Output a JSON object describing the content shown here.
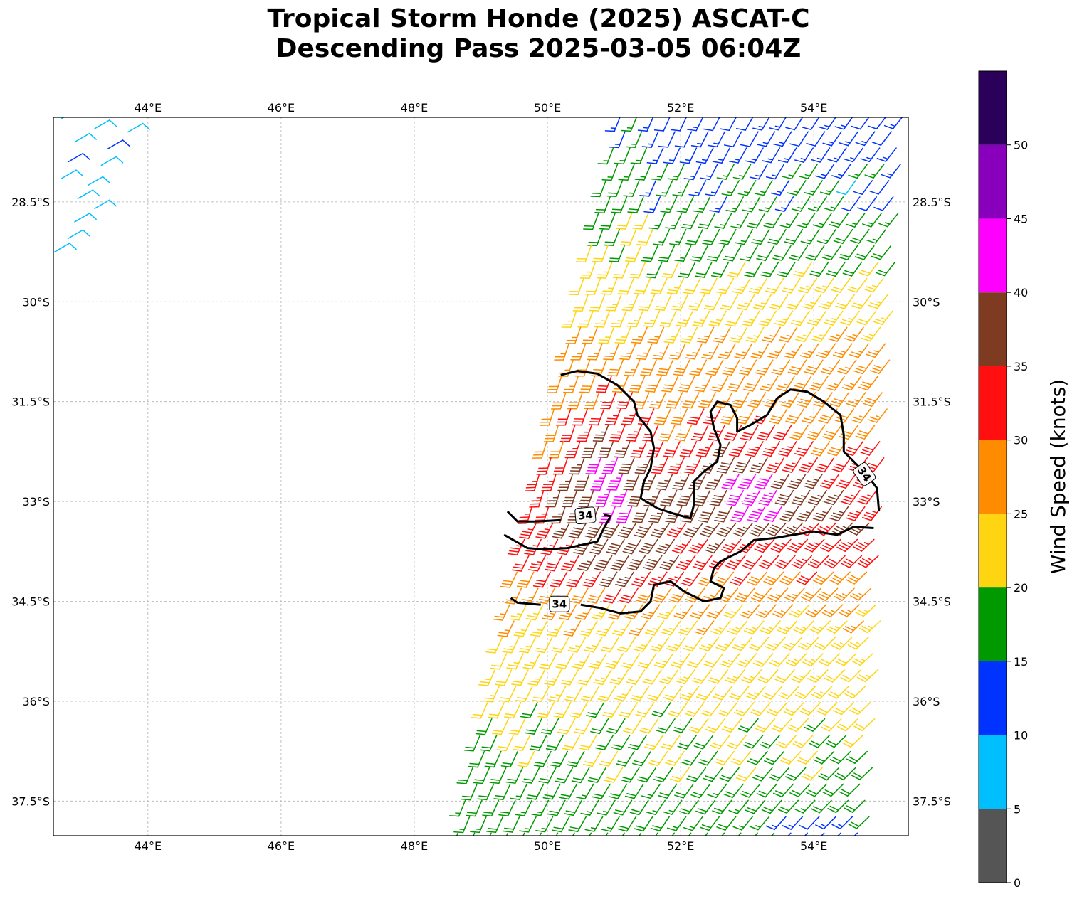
{
  "title": {
    "line1": "Tropical Storm Honde (2025) ASCAT-C",
    "line2": "Descending Pass 2025-03-05 06:04Z"
  },
  "map": {
    "projection": "lon-lat",
    "lon_range": [
      42.58,
      55.42
    ],
    "lat_range": [
      -38.02,
      -27.23
    ],
    "grid": true,
    "lon_ticks": [
      {
        "value": 44,
        "label": "44°E"
      },
      {
        "value": 46,
        "label": "46°E"
      },
      {
        "value": 48,
        "label": "48°E"
      },
      {
        "value": 50,
        "label": "50°E"
      },
      {
        "value": 52,
        "label": "52°E"
      },
      {
        "value": 54,
        "label": "54°E"
      }
    ],
    "lat_ticks": [
      {
        "value": -28.5,
        "label": "28.5°S"
      },
      {
        "value": -30,
        "label": "30°S"
      },
      {
        "value": -31.5,
        "label": "31.5°S"
      },
      {
        "value": -33,
        "label": "33°S"
      },
      {
        "value": -34.5,
        "label": "34.5°S"
      },
      {
        "value": -36,
        "label": "36°S"
      },
      {
        "value": -37.5,
        "label": "37.5°S"
      }
    ],
    "contour": {
      "level_label": "34",
      "color": "#000000",
      "lines": [
        [
          [
            50.2,
            -31.1
          ],
          [
            50.45,
            -31.04
          ],
          [
            50.75,
            -31.08
          ],
          [
            51.05,
            -31.25
          ],
          [
            51.3,
            -31.5
          ],
          [
            51.35,
            -31.7
          ],
          [
            51.55,
            -31.95
          ],
          [
            51.6,
            -32.2
          ],
          [
            51.55,
            -32.5
          ],
          [
            51.45,
            -32.7
          ],
          [
            51.4,
            -32.95
          ],
          [
            51.65,
            -33.1
          ],
          [
            51.95,
            -33.2
          ],
          [
            52.15,
            -33.25
          ],
          [
            52.2,
            -33.05
          ],
          [
            52.2,
            -32.7
          ],
          [
            52.35,
            -32.55
          ],
          [
            52.55,
            -32.4
          ],
          [
            52.6,
            -32.15
          ],
          [
            52.5,
            -31.9
          ],
          [
            52.45,
            -31.65
          ],
          [
            52.55,
            -31.5
          ],
          [
            52.75,
            -31.55
          ],
          [
            52.85,
            -31.75
          ],
          [
            52.85,
            -31.95
          ],
          [
            53.05,
            -31.85
          ],
          [
            53.3,
            -31.7
          ],
          [
            53.45,
            -31.45
          ],
          [
            53.65,
            -31.32
          ],
          [
            53.9,
            -31.35
          ],
          [
            54.15,
            -31.5
          ],
          [
            54.4,
            -31.7
          ],
          [
            54.45,
            -32.0
          ],
          [
            54.45,
            -32.25
          ],
          [
            54.6,
            -32.4
          ],
          [
            54.8,
            -32.6
          ],
          [
            54.95,
            -32.8
          ],
          [
            54.98,
            -33.15
          ]
        ],
        [
          [
            49.4,
            -33.15
          ],
          [
            49.55,
            -33.3
          ],
          [
            49.85,
            -33.3
          ],
          [
            50.2,
            -33.28
          ]
        ],
        [
          [
            50.85,
            -33.2
          ],
          [
            50.95,
            -33.22
          ],
          [
            50.85,
            -33.4
          ],
          [
            50.75,
            -33.6
          ],
          [
            50.3,
            -33.7
          ],
          [
            49.95,
            -33.72
          ],
          [
            49.7,
            -33.7
          ],
          [
            49.35,
            -33.5
          ]
        ],
        [
          [
            54.9,
            -33.4
          ],
          [
            54.6,
            -33.38
          ],
          [
            54.35,
            -33.5
          ],
          [
            54.0,
            -33.45
          ],
          [
            53.7,
            -33.5
          ],
          [
            53.4,
            -33.55
          ],
          [
            53.1,
            -33.58
          ],
          [
            52.9,
            -33.75
          ],
          [
            52.6,
            -33.9
          ],
          [
            52.5,
            -34.0
          ],
          [
            52.45,
            -34.2
          ],
          [
            52.65,
            -34.3
          ],
          [
            52.6,
            -34.45
          ],
          [
            52.35,
            -34.5
          ],
          [
            52.05,
            -34.35
          ],
          [
            51.85,
            -34.2
          ],
          [
            51.6,
            -34.25
          ],
          [
            51.55,
            -34.5
          ],
          [
            51.4,
            -34.65
          ],
          [
            51.1,
            -34.68
          ],
          [
            50.8,
            -34.6
          ],
          [
            50.5,
            -34.55
          ]
        ],
        [
          [
            49.9,
            -34.55
          ],
          [
            49.55,
            -34.52
          ],
          [
            49.45,
            -34.45
          ]
        ]
      ],
      "labels": [
        {
          "lon": 50.57,
          "lat": -33.21,
          "angle": -5
        },
        {
          "lon": 50.18,
          "lat": -34.54,
          "angle": 0
        },
        {
          "lon": 54.76,
          "lat": -32.59,
          "angle": 55
        }
      ]
    }
  },
  "colorbar": {
    "label": "Wind Speed (knots)",
    "range": [
      0,
      55
    ],
    "bins": [
      {
        "min": 0,
        "max": 5,
        "color": "#555555"
      },
      {
        "min": 5,
        "max": 10,
        "color": "#00BFFF"
      },
      {
        "min": 10,
        "max": 15,
        "color": "#0033FF"
      },
      {
        "min": 15,
        "max": 20,
        "color": "#009900"
      },
      {
        "min": 20,
        "max": 25,
        "color": "#FFD512"
      },
      {
        "min": 25,
        "max": 30,
        "color": "#FF8C00"
      },
      {
        "min": 30,
        "max": 35,
        "color": "#FF0F0F"
      },
      {
        "min": 35,
        "max": 40,
        "color": "#7E3B22"
      },
      {
        "min": 40,
        "max": 45,
        "color": "#FF00FF"
      },
      {
        "min": 45,
        "max": 50,
        "color": "#8800BB"
      },
      {
        "min": 50,
        "max": 55,
        "color": "#2A005A"
      }
    ],
    "ticks": [
      {
        "value": 0,
        "label": "0"
      },
      {
        "value": 5,
        "label": "5"
      },
      {
        "value": 10,
        "label": "10"
      },
      {
        "value": 15,
        "label": "15"
      },
      {
        "value": 20,
        "label": "20"
      },
      {
        "value": 25,
        "label": "25"
      },
      {
        "value": 30,
        "label": "30"
      },
      {
        "value": 35,
        "label": "35"
      },
      {
        "value": 40,
        "label": "40"
      },
      {
        "value": 45,
        "label": "45"
      },
      {
        "value": 50,
        "label": "50"
      }
    ]
  }
}
